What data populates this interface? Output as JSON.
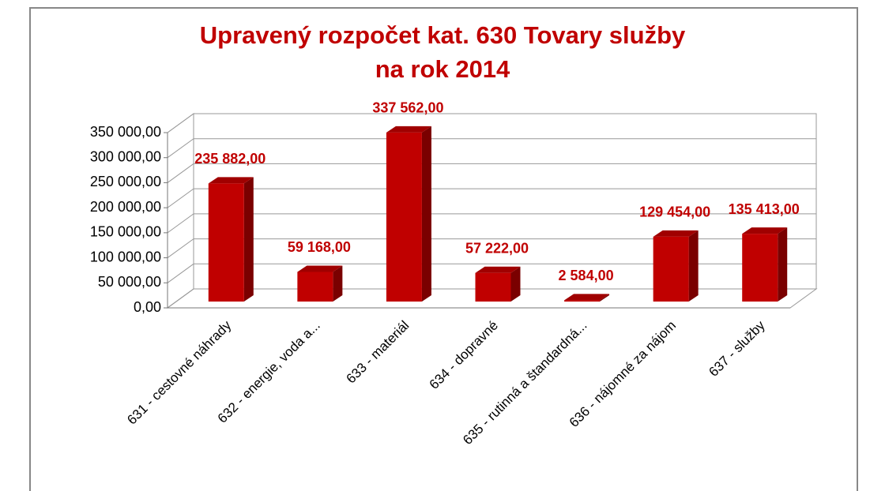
{
  "chart_data": {
    "type": "bar3d",
    "title": [
      "Upravený rozpočet  kat. 630 Tovary služby",
      "na rok 2014"
    ],
    "categories": [
      "631 - cestovné náhrady",
      "632 - energie, voda a...",
      "633 - materiál",
      "634 - dopravné",
      "635 - rutinná a štandardná...",
      "636 - nájomné za nájom",
      "637 - služby"
    ],
    "values": [
      235882,
      59168,
      337562,
      57222,
      2584,
      129454,
      135413
    ],
    "value_labels": [
      "235 882,00",
      "59 168,00",
      "337 562,00",
      "57 222,00",
      "2 584,00",
      "129 454,00",
      "135 413,00"
    ],
    "color": "#c00000",
    "ylim": [
      0,
      350000
    ],
    "yticks": [
      {
        "value": 0,
        "label": "0,00"
      },
      {
        "value": 50000,
        "label": "50 000,00"
      },
      {
        "value": 100000,
        "label": "100 000,00"
      },
      {
        "value": 150000,
        "label": "150 000,00"
      },
      {
        "value": 200000,
        "label": "200 000,00"
      },
      {
        "value": 250000,
        "label": "250 000,00"
      },
      {
        "value": 300000,
        "label": "300 000,00"
      },
      {
        "value": 350000,
        "label": "350 000,00"
      }
    ],
    "grid": true
  }
}
